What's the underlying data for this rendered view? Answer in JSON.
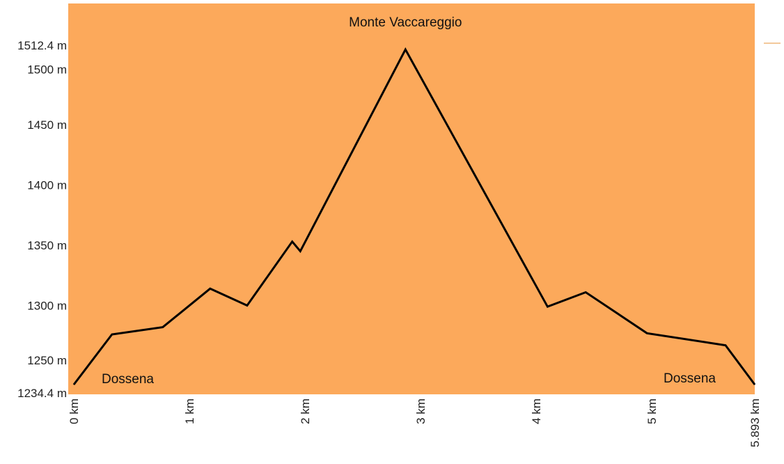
{
  "chart_data": {
    "type": "area",
    "title": "",
    "xlabel": "",
    "ylabel": "",
    "xlim": [
      0,
      5.893
    ],
    "ylim": [
      1234.4,
      1512.4
    ],
    "grid": false,
    "background_color": "#FCA95B",
    "line_color": "#000000",
    "x_ticks": [
      {
        "value": 0,
        "label": "0 km"
      },
      {
        "value": 1,
        "label": "1 km"
      },
      {
        "value": 2,
        "label": "2 km"
      },
      {
        "value": 3,
        "label": "3 km"
      },
      {
        "value": 4,
        "label": "4 km"
      },
      {
        "value": 5,
        "label": "5 km"
      },
      {
        "value": 5.893,
        "label": "5.893 km"
      }
    ],
    "y_ticks": [
      {
        "value": 1234.4,
        "label": "1234.4 m"
      },
      {
        "value": 1250,
        "label": "1250 m"
      },
      {
        "value": 1300,
        "label": "1300 m"
      },
      {
        "value": 1350,
        "label": "1350 m"
      },
      {
        "value": 1400,
        "label": "1400 m"
      },
      {
        "value": 1450,
        "label": "1450 m"
      },
      {
        "value": 1500,
        "label": "1500 m"
      },
      {
        "value": 1512.4,
        "label": "1512.4 m"
      }
    ],
    "series": [
      {
        "x": [
          0,
          0.33,
          0.77,
          1.18,
          1.5,
          1.89,
          1.96,
          2.87,
          4.1,
          4.43,
          4.96,
          5.64,
          5.893
        ],
        "y": [
          1234.4,
          1276,
          1282,
          1314,
          1300,
          1353,
          1345,
          1512.4,
          1299,
          1311,
          1277,
          1267,
          1234.4
        ]
      }
    ],
    "annotations": [
      {
        "text": "Monte Vaccareggio",
        "x": 2.87,
        "y": 1512.4
      },
      {
        "text": "Dossena",
        "x": 0,
        "y": 1234.4
      },
      {
        "text": "Dossena",
        "x": 5.893,
        "y": 1234.4
      }
    ]
  }
}
